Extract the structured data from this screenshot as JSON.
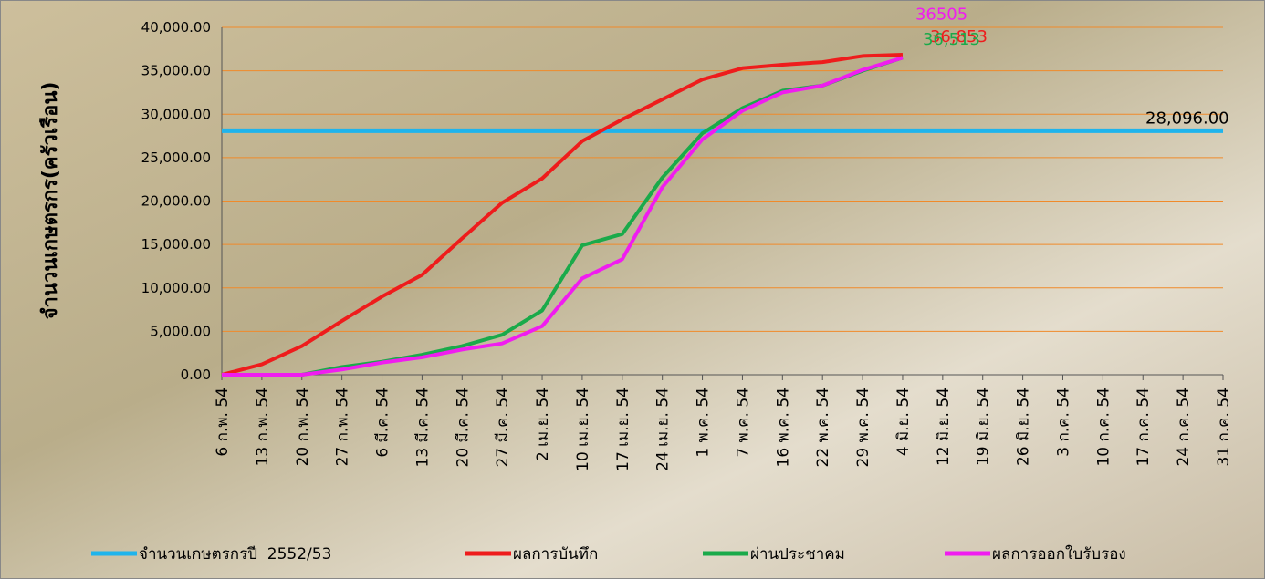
{
  "chart_data": {
    "type": "line",
    "y_label": "จำนวนเกษตรกร(ครัวเรือน)",
    "categories": [
      "6 ก.พ. 54",
      "13 ก.พ. 54",
      "20 ก.พ. 54",
      "27 ก.พ. 54",
      "6 มี.ค. 54",
      "13 มี.ค. 54",
      "20 มี.ค. 54",
      "27 มี.ค. 54",
      "2 เม.ย. 54",
      "10 เม.ย. 54",
      "17 เม.ย. 54",
      "24 เม.ย. 54",
      "1 พ.ค. 54",
      "7 พ.ค. 54",
      "16 พ.ค. 54",
      "22 พ.ค. 54",
      "29 พ.ค. 54",
      "4 มิ.ย. 54",
      "12 มิ.ย. 54",
      "19 มิ.ย. 54",
      "26 มิ.ย. 54",
      "3 ก.ค. 54",
      "10 ก.ค. 54",
      "17 ก.ค. 54",
      "24 ก.ค. 54",
      "31 ก.ค. 54"
    ],
    "series": [
      {
        "name": "จำนวนเกษตรกรปี  2552/53",
        "color": "#1fb4ec",
        "end_label": "28,096.00",
        "end_label_color": "#000000",
        "values": [
          28096,
          28096,
          28096,
          28096,
          28096,
          28096,
          28096,
          28096,
          28096,
          28096,
          28096,
          28096,
          28096,
          28096,
          28096,
          28096,
          28096,
          28096,
          28096,
          28096,
          28096,
          28096,
          28096,
          28096,
          28096,
          28096
        ]
      },
      {
        "name": "ผลการบันทึก",
        "color": "#ee1c1c",
        "end_label": "36,853",
        "end_label_color": "#ee1c1c",
        "values": [
          0,
          1200,
          3300,
          6200,
          9000,
          11500,
          15700,
          19800,
          22600,
          26900,
          29400,
          31700,
          34000,
          35300,
          35700,
          36000,
          36700,
          36853,
          null,
          null,
          null,
          null,
          null,
          null,
          null,
          null
        ]
      },
      {
        "name": "ผ่านประชาคม",
        "color": "#1aaa4a",
        "end_label": "36,513",
        "end_label_color": "#1aaa4a",
        "values": [
          0,
          0,
          0,
          900,
          1500,
          2300,
          3300,
          4600,
          7400,
          14900,
          16200,
          22700,
          27800,
          30700,
          32700,
          33300,
          35000,
          36513,
          null,
          null,
          null,
          null,
          null,
          null,
          null,
          null
        ]
      },
      {
        "name": "ผลการออกใบรับรอง",
        "color": "#f01cf0",
        "end_label": "36505",
        "end_label_color": "#f01cf0",
        "values": [
          0,
          0,
          0,
          600,
          1400,
          2000,
          2900,
          3600,
          5600,
          11100,
          13300,
          21600,
          27100,
          30400,
          32500,
          33300,
          35100,
          36505,
          null,
          null,
          null,
          null,
          null,
          null,
          null,
          null
        ]
      }
    ],
    "ylim": [
      0,
      40000
    ],
    "yticks": [
      {
        "value": 0,
        "label": "0.00"
      },
      {
        "value": 5000,
        "label": "5,000.00"
      },
      {
        "value": 10000,
        "label": "10,000.00"
      },
      {
        "value": 15000,
        "label": "15,000.00"
      },
      {
        "value": 20000,
        "label": "20,000.00"
      },
      {
        "value": 25000,
        "label": "25,000.00"
      },
      {
        "value": 30000,
        "label": "30,000.00"
      },
      {
        "value": 35000,
        "label": "35,000.00"
      },
      {
        "value": 40000,
        "label": "40,000.00"
      }
    ],
    "grid": true,
    "grid_color": "#f08a2a",
    "legend": "bottom"
  }
}
